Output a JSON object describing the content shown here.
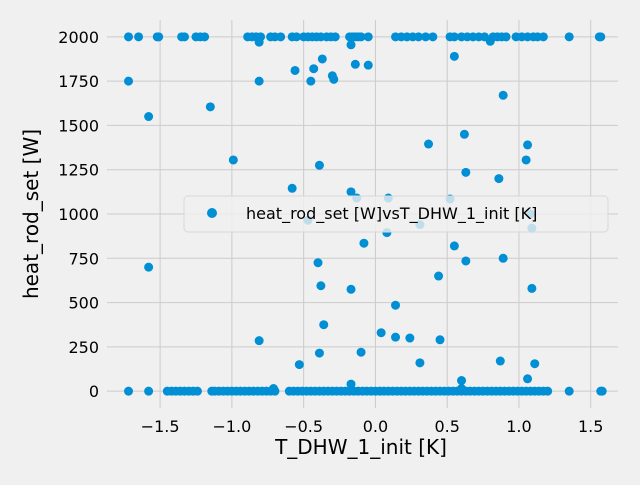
{
  "chart_data": {
    "type": "scatter",
    "title": "",
    "xlabel": "T_DHW_1_init [K]",
    "ylabel": "heat_rod_set [W]",
    "xlim": [
      -1.87,
      1.69
    ],
    "ylim": [
      -95,
      2095
    ],
    "x_ticks": [
      -1.5,
      -1.0,
      -0.5,
      0.0,
      0.5,
      1.0,
      1.5
    ],
    "x_tick_labels": [
      "−1.5",
      "−1.0",
      "−0.5",
      "0.0",
      "0.5",
      "1.0",
      "1.5"
    ],
    "y_ticks": [
      0,
      250,
      500,
      750,
      1000,
      1250,
      1500,
      1750,
      2000
    ],
    "y_tick_labels": [
      "0",
      "250",
      "500",
      "750",
      "1000",
      "1250",
      "1500",
      "1750",
      "2000"
    ],
    "grid": true,
    "legend_position": "center-right",
    "colors": {
      "background": "#f0f0f0",
      "grid": "#cbcbcb",
      "series": "#008fd5"
    },
    "series": [
      {
        "name": "heat_rod_set [W]vsT_DHW_1_init [K]",
        "color": "#008fd5",
        "points": [
          [
            -1.72,
            2000
          ],
          [
            -1.65,
            2000
          ],
          [
            -1.52,
            2000
          ],
          [
            -1.51,
            2000
          ],
          [
            -1.35,
            2000
          ],
          [
            -1.33,
            2000
          ],
          [
            -1.25,
            2000
          ],
          [
            -1.22,
            2000
          ],
          [
            -1.19,
            2000
          ],
          [
            -0.89,
            2000
          ],
          [
            -0.86,
            2000
          ],
          [
            -0.83,
            2000
          ],
          [
            -0.8,
            2000
          ],
          [
            -0.73,
            2000
          ],
          [
            -0.7,
            2000
          ],
          [
            -0.66,
            2000
          ],
          [
            -0.58,
            2000
          ],
          [
            -0.55,
            2000
          ],
          [
            -0.5,
            2000
          ],
          [
            -0.47,
            2000
          ],
          [
            -0.44,
            2000
          ],
          [
            -0.41,
            2000
          ],
          [
            -0.38,
            2000
          ],
          [
            -0.34,
            2000
          ],
          [
            -0.31,
            2000
          ],
          [
            -0.28,
            2000
          ],
          [
            -0.18,
            2000
          ],
          [
            -0.16,
            2000
          ],
          [
            -0.14,
            2000
          ],
          [
            -0.12,
            2000
          ],
          [
            -0.1,
            2000
          ],
          [
            -0.05,
            2000
          ],
          [
            0.14,
            2000
          ],
          [
            0.18,
            2000
          ],
          [
            0.22,
            2000
          ],
          [
            0.26,
            2000
          ],
          [
            0.3,
            2000
          ],
          [
            0.35,
            2000
          ],
          [
            0.4,
            2000
          ],
          [
            0.52,
            2000
          ],
          [
            0.55,
            2000
          ],
          [
            0.6,
            2000
          ],
          [
            0.64,
            2000
          ],
          [
            0.68,
            2000
          ],
          [
            0.72,
            2000
          ],
          [
            0.76,
            2000
          ],
          [
            0.82,
            2000
          ],
          [
            0.85,
            2000
          ],
          [
            0.88,
            2000
          ],
          [
            0.91,
            2000
          ],
          [
            0.98,
            2000
          ],
          [
            1.02,
            2000
          ],
          [
            1.06,
            2000
          ],
          [
            1.1,
            2000
          ],
          [
            1.13,
            2000
          ],
          [
            1.17,
            2000
          ],
          [
            1.35,
            2000
          ],
          [
            1.56,
            2000
          ],
          [
            1.57,
            2000
          ],
          [
            -0.81,
            1970
          ],
          [
            -0.17,
            1955
          ],
          [
            0.8,
            1975
          ],
          [
            -0.43,
            1820
          ],
          [
            -0.56,
            1810
          ],
          [
            -1.72,
            1750
          ],
          [
            -0.81,
            1750
          ],
          [
            -0.45,
            1750
          ],
          [
            -0.3,
            1780
          ],
          [
            -0.29,
            1760
          ],
          [
            0.55,
            1890
          ],
          [
            -0.37,
            1875
          ],
          [
            -0.14,
            1845
          ],
          [
            -0.05,
            1840
          ],
          [
            0.89,
            1670
          ],
          [
            -1.58,
            1550
          ],
          [
            -1.15,
            1605
          ],
          [
            0.62,
            1450
          ],
          [
            0.37,
            1395
          ],
          [
            1.06,
            1390
          ],
          [
            -0.99,
            1305
          ],
          [
            1.05,
            1305
          ],
          [
            -0.39,
            1275
          ],
          [
            0.63,
            1235
          ],
          [
            0.86,
            1200
          ],
          [
            -0.58,
            1145
          ],
          [
            -0.17,
            1125
          ],
          [
            -0.13,
            1090
          ],
          [
            0.09,
            1090
          ],
          [
            0.52,
            1085
          ],
          [
            1.08,
            1000
          ],
          [
            -0.47,
            965
          ],
          [
            0.31,
            940
          ],
          [
            1.09,
            920
          ],
          [
            0.08,
            895
          ],
          [
            -0.08,
            835
          ],
          [
            0.55,
            820
          ],
          [
            0.89,
            750
          ],
          [
            0.63,
            735
          ],
          [
            -0.4,
            725
          ],
          [
            -1.58,
            700
          ],
          [
            0.44,
            650
          ],
          [
            -0.38,
            595
          ],
          [
            1.09,
            580
          ],
          [
            -0.17,
            575
          ],
          [
            0.14,
            485
          ],
          [
            -0.36,
            375
          ],
          [
            0.04,
            330
          ],
          [
            0.14,
            305
          ],
          [
            0.24,
            300
          ],
          [
            0.45,
            290
          ],
          [
            -0.81,
            285
          ],
          [
            -0.1,
            220
          ],
          [
            -0.39,
            215
          ],
          [
            0.31,
            160
          ],
          [
            0.87,
            170
          ],
          [
            1.11,
            155
          ],
          [
            -0.53,
            150
          ],
          [
            1.06,
            70
          ],
          [
            0.6,
            60
          ],
          [
            -0.17,
            40
          ],
          [
            -0.71,
            15
          ],
          [
            0.6,
            15
          ],
          [
            -1.72,
            0
          ],
          [
            -1.58,
            0
          ],
          [
            -1.45,
            0
          ],
          [
            -1.42,
            0
          ],
          [
            -1.39,
            0
          ],
          [
            -1.36,
            0
          ],
          [
            -1.33,
            0
          ],
          [
            -1.3,
            0
          ],
          [
            -1.27,
            0
          ],
          [
            -1.24,
            0
          ],
          [
            -1.14,
            0
          ],
          [
            -1.12,
            0
          ],
          [
            -1.09,
            0
          ],
          [
            -1.06,
            0
          ],
          [
            -1.03,
            0
          ],
          [
            -1.0,
            0
          ],
          [
            -0.97,
            0
          ],
          [
            -0.94,
            0
          ],
          [
            -0.91,
            0
          ],
          [
            -0.88,
            0
          ],
          [
            -0.85,
            0
          ],
          [
            -0.82,
            0
          ],
          [
            -0.79,
            0
          ],
          [
            -0.76,
            0
          ],
          [
            -0.73,
            0
          ],
          [
            -0.7,
            0
          ],
          [
            -0.6,
            0
          ],
          [
            -0.57,
            0
          ],
          [
            -0.54,
            0
          ],
          [
            -0.51,
            0
          ],
          [
            -0.48,
            0
          ],
          [
            -0.45,
            0
          ],
          [
            -0.42,
            0
          ],
          [
            -0.39,
            0
          ],
          [
            -0.36,
            0
          ],
          [
            -0.33,
            0
          ],
          [
            -0.3,
            0
          ],
          [
            -0.27,
            0
          ],
          [
            -0.24,
            0
          ],
          [
            -0.21,
            0
          ],
          [
            -0.18,
            0
          ],
          [
            -0.15,
            0
          ],
          [
            -0.12,
            0
          ],
          [
            -0.09,
            0
          ],
          [
            -0.06,
            0
          ],
          [
            -0.03,
            0
          ],
          [
            0.0,
            0
          ],
          [
            0.03,
            0
          ],
          [
            0.06,
            0
          ],
          [
            0.09,
            0
          ],
          [
            0.12,
            0
          ],
          [
            0.15,
            0
          ],
          [
            0.18,
            0
          ],
          [
            0.21,
            0
          ],
          [
            0.24,
            0
          ],
          [
            0.27,
            0
          ],
          [
            0.3,
            0
          ],
          [
            0.33,
            0
          ],
          [
            0.36,
            0
          ],
          [
            0.39,
            0
          ],
          [
            0.42,
            0
          ],
          [
            0.45,
            0
          ],
          [
            0.48,
            0
          ],
          [
            0.51,
            0
          ],
          [
            0.54,
            0
          ],
          [
            0.57,
            0
          ],
          [
            0.6,
            0
          ],
          [
            0.63,
            0
          ],
          [
            0.66,
            0
          ],
          [
            0.69,
            0
          ],
          [
            0.72,
            0
          ],
          [
            0.75,
            0
          ],
          [
            0.78,
            0
          ],
          [
            0.81,
            0
          ],
          [
            0.84,
            0
          ],
          [
            0.87,
            0
          ],
          [
            0.9,
            0
          ],
          [
            0.93,
            0
          ],
          [
            0.96,
            0
          ],
          [
            0.99,
            0
          ],
          [
            1.02,
            0
          ],
          [
            1.05,
            0
          ],
          [
            1.08,
            0
          ],
          [
            1.11,
            0
          ],
          [
            1.14,
            0
          ],
          [
            1.17,
            0
          ],
          [
            1.2,
            0
          ],
          [
            1.35,
            0
          ],
          [
            1.57,
            0
          ],
          [
            1.58,
            0
          ]
        ]
      }
    ]
  }
}
